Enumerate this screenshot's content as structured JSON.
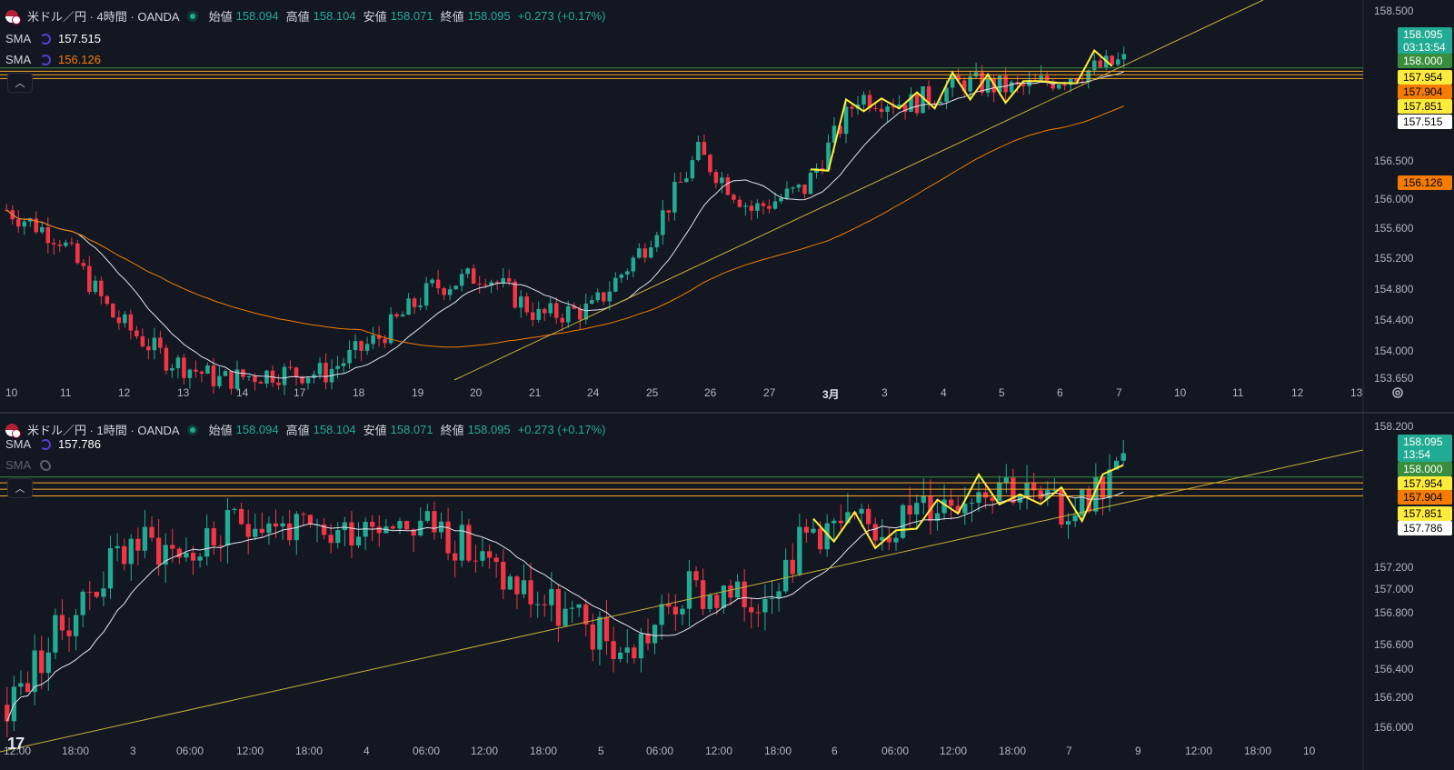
{
  "colors": {
    "up": "#22ab94",
    "down": "#f23645",
    "bg": "#131722",
    "sma_fast": "#e0e3eb",
    "sma_slow": "#f57c00",
    "trend": "#c9b037",
    "wave": "#ffee3b",
    "level_green": "#388e3c",
    "level_orange": "#f9a825"
  },
  "pane1": {
    "title": "米ドル／円 · 4時間 · OANDA",
    "ohlc": {
      "o_label": "始値",
      "o": "158.094",
      "h_label": "高値",
      "h": "158.104",
      "l_label": "安値",
      "l": "158.071",
      "c_label": "終値",
      "c": "158.095",
      "chg": "+0.273 (+0.17%)"
    },
    "sma": [
      {
        "label": "SMA",
        "value": "157.515",
        "color": "#ffffff"
      },
      {
        "label": "SMA",
        "value": "156.126",
        "color": "#f57c00"
      }
    ],
    "price_ticks": [
      "158.500",
      "156.500",
      "156.000",
      "155.600",
      "155.200",
      "154.800",
      "154.400",
      "154.000",
      "153.650"
    ],
    "time_ticks": [
      "10",
      "11",
      "12",
      "13",
      "14",
      "17",
      "18",
      "19",
      "20",
      "21",
      "24",
      "25",
      "26",
      "27",
      "3月",
      "3",
      "4",
      "5",
      "6",
      "7",
      "10",
      "11",
      "12",
      "13"
    ],
    "tags": [
      {
        "text": "158.095",
        "sub": "03:13:54",
        "bg": "#22ab94",
        "fg": "#ffffff"
      },
      {
        "text": "158.000",
        "bg": "#388e3c",
        "fg": "#ffffff"
      },
      {
        "text": "157.954",
        "bg": "#ffeb3b",
        "fg": "#000000"
      },
      {
        "text": "157.904",
        "bg": "#f57c00",
        "fg": "#000000"
      },
      {
        "text": "157.851",
        "bg": "#ffeb3b",
        "fg": "#000000"
      },
      {
        "text": "157.515",
        "bg": "#ffffff",
        "fg": "#000000"
      },
      {
        "text": "156.126",
        "bg": "#f57c00",
        "fg": "#000000"
      }
    ]
  },
  "pane2": {
    "title": "米ドル／円 · 1時間 · OANDA",
    "ohlc": {
      "o_label": "始値",
      "o": "158.094",
      "h_label": "高値",
      "h": "158.104",
      "l_label": "安値",
      "l": "158.071",
      "c_label": "終値",
      "c": "158.095",
      "chg": "+0.273 (+0.17%)"
    },
    "sma": [
      {
        "label": "SMA",
        "value": "157.786",
        "color": "#ffffff"
      },
      {
        "label": "SMA",
        "value": "",
        "color": "#5d606b"
      }
    ],
    "price_ticks": [
      "158.200",
      "157.200",
      "157.000",
      "156.800",
      "156.600",
      "156.400",
      "156.200",
      "156.000"
    ],
    "time_ticks": [
      "12:00",
      "18:00",
      "3",
      "06:00",
      "12:00",
      "18:00",
      "4",
      "06:00",
      "12:00",
      "18:00",
      "5",
      "06:00",
      "12:00",
      "18:00",
      "6",
      "06:00",
      "12:00",
      "18:00",
      "7",
      "9",
      "12:00",
      "18:00",
      "10"
    ],
    "tags": [
      {
        "text": "158.095",
        "sub": "13:54",
        "bg": "#22ab94",
        "fg": "#ffffff"
      },
      {
        "text": "158.000",
        "bg": "#388e3c",
        "fg": "#ffffff"
      },
      {
        "text": "157.954",
        "bg": "#ffeb3b",
        "fg": "#000000"
      },
      {
        "text": "157.904",
        "bg": "#f57c00",
        "fg": "#000000"
      },
      {
        "text": "157.851",
        "bg": "#ffeb3b",
        "fg": "#000000"
      },
      {
        "text": "157.786",
        "bg": "#ffffff",
        "fg": "#000000"
      }
    ]
  },
  "logo": "17",
  "icons": {
    "collapse": "chevron-up-icon",
    "settings": "gear-icon",
    "sma": "indicator-icon",
    "hidden": "eye-off-icon",
    "alert": "alert-clock-icon"
  },
  "chart_data": [
    {
      "type": "candlestick",
      "title": "米ドル／円 · 4時間 · OANDA",
      "close_path": [
        156.0,
        155.6,
        154.5,
        153.9,
        153.6,
        153.7,
        153.7,
        154.2,
        154.9,
        155.1,
        154.5,
        154.6,
        155.5,
        156.8,
        156.0,
        156.3,
        157.6,
        157.5,
        157.8,
        157.7,
        157.9,
        158.095
      ],
      "sma": [
        {
          "name": "SMA",
          "last": 157.515
        },
        {
          "name": "SMA",
          "last": 156.126
        }
      ],
      "levels": [
        158.0,
        157.954,
        157.904,
        157.851
      ],
      "ylim": [
        153.6,
        158.6
      ]
    },
    {
      "type": "candlestick",
      "title": "米ドル／円 · 1時間 · OANDA",
      "close_path": [
        156.2,
        156.9,
        157.5,
        157.4,
        157.7,
        157.5,
        157.7,
        157.6,
        157.2,
        156.9,
        156.6,
        157.1,
        157.0,
        157.6,
        157.6,
        157.8,
        158.0,
        157.7,
        158.095
      ],
      "sma": [
        {
          "name": "SMA",
          "last": 157.786
        }
      ],
      "levels": [
        158.0,
        157.954,
        157.904,
        157.851
      ],
      "ylim": [
        155.9,
        158.3
      ]
    }
  ]
}
